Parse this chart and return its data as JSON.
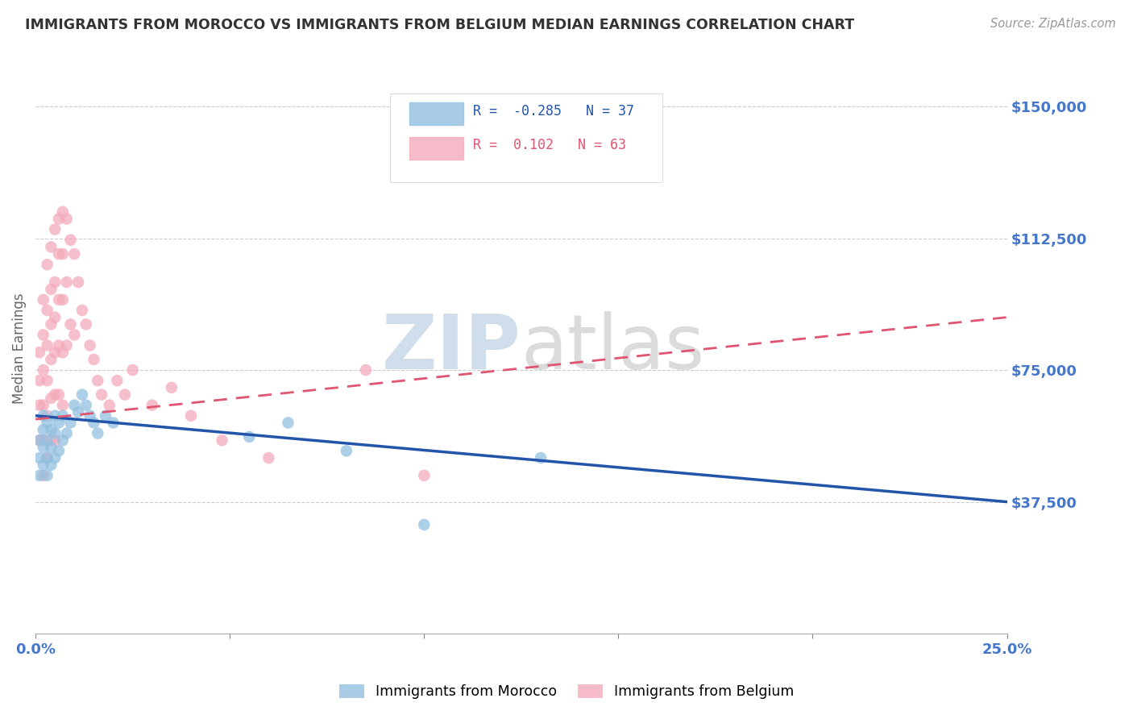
{
  "title": "IMMIGRANTS FROM MOROCCO VS IMMIGRANTS FROM BELGIUM MEDIAN EARNINGS CORRELATION CHART",
  "source": "Source: ZipAtlas.com",
  "ylabel": "Median Earnings",
  "xlim": [
    0.0,
    0.25
  ],
  "ylim": [
    0,
    162500
  ],
  "yticks": [
    0,
    37500,
    75000,
    112500,
    150000
  ],
  "ytick_labels": [
    "",
    "$37,500",
    "$75,000",
    "$112,500",
    "$150,000"
  ],
  "background_color": "#ffffff",
  "grid_color": "#cccccc",
  "morocco_color": "#92C0E0",
  "belgium_color": "#F4AABB",
  "morocco_line_color": "#2255AA",
  "belgium_line_color": "#E05570",
  "morocco_R": -0.285,
  "morocco_N": 37,
  "belgium_R": 0.102,
  "belgium_N": 63,
  "title_color": "#333333",
  "axis_label_color": "#666666",
  "tick_label_color": "#4477CC",
  "watermark_zip": "ZIP",
  "watermark_atlas": "atlas",
  "morocco_trend_x0": 0.0,
  "morocco_trend_y0": 62000,
  "morocco_trend_x1": 0.25,
  "morocco_trend_y1": 37500,
  "belgium_trend_x0": 0.0,
  "belgium_trend_y0": 61000,
  "belgium_trend_x1": 0.25,
  "belgium_trend_y1": 90000,
  "morocco_x": [
    0.001,
    0.001,
    0.001,
    0.002,
    0.002,
    0.002,
    0.002,
    0.003,
    0.003,
    0.003,
    0.003,
    0.004,
    0.004,
    0.004,
    0.005,
    0.005,
    0.005,
    0.006,
    0.006,
    0.007,
    0.007,
    0.008,
    0.009,
    0.01,
    0.011,
    0.012,
    0.013,
    0.014,
    0.015,
    0.016,
    0.018,
    0.02,
    0.055,
    0.065,
    0.08,
    0.13,
    0.1
  ],
  "morocco_y": [
    55000,
    50000,
    45000,
    62000,
    58000,
    53000,
    48000,
    60000,
    55000,
    50000,
    45000,
    58000,
    53000,
    48000,
    62000,
    57000,
    50000,
    60000,
    52000,
    62000,
    55000,
    57000,
    60000,
    65000,
    63000,
    68000,
    65000,
    62000,
    60000,
    57000,
    62000,
    60000,
    56000,
    60000,
    52000,
    50000,
    31000
  ],
  "belgium_x": [
    0.001,
    0.001,
    0.001,
    0.001,
    0.002,
    0.002,
    0.002,
    0.002,
    0.002,
    0.002,
    0.003,
    0.003,
    0.003,
    0.003,
    0.003,
    0.003,
    0.004,
    0.004,
    0.004,
    0.004,
    0.004,
    0.004,
    0.005,
    0.005,
    0.005,
    0.005,
    0.005,
    0.005,
    0.006,
    0.006,
    0.006,
    0.006,
    0.006,
    0.007,
    0.007,
    0.007,
    0.007,
    0.007,
    0.008,
    0.008,
    0.008,
    0.009,
    0.009,
    0.01,
    0.01,
    0.011,
    0.012,
    0.013,
    0.014,
    0.015,
    0.016,
    0.017,
    0.019,
    0.021,
    0.023,
    0.025,
    0.03,
    0.035,
    0.04,
    0.048,
    0.06,
    0.085,
    0.1
  ],
  "belgium_y": [
    80000,
    72000,
    65000,
    55000,
    95000,
    85000,
    75000,
    65000,
    55000,
    45000,
    105000,
    92000,
    82000,
    72000,
    62000,
    50000,
    110000,
    98000,
    88000,
    78000,
    67000,
    55000,
    115000,
    100000,
    90000,
    80000,
    68000,
    55000,
    118000,
    108000,
    95000,
    82000,
    68000,
    120000,
    108000,
    95000,
    80000,
    65000,
    118000,
    100000,
    82000,
    112000,
    88000,
    108000,
    85000,
    100000,
    92000,
    88000,
    82000,
    78000,
    72000,
    68000,
    65000,
    72000,
    68000,
    75000,
    65000,
    70000,
    62000,
    55000,
    50000,
    75000,
    45000
  ]
}
